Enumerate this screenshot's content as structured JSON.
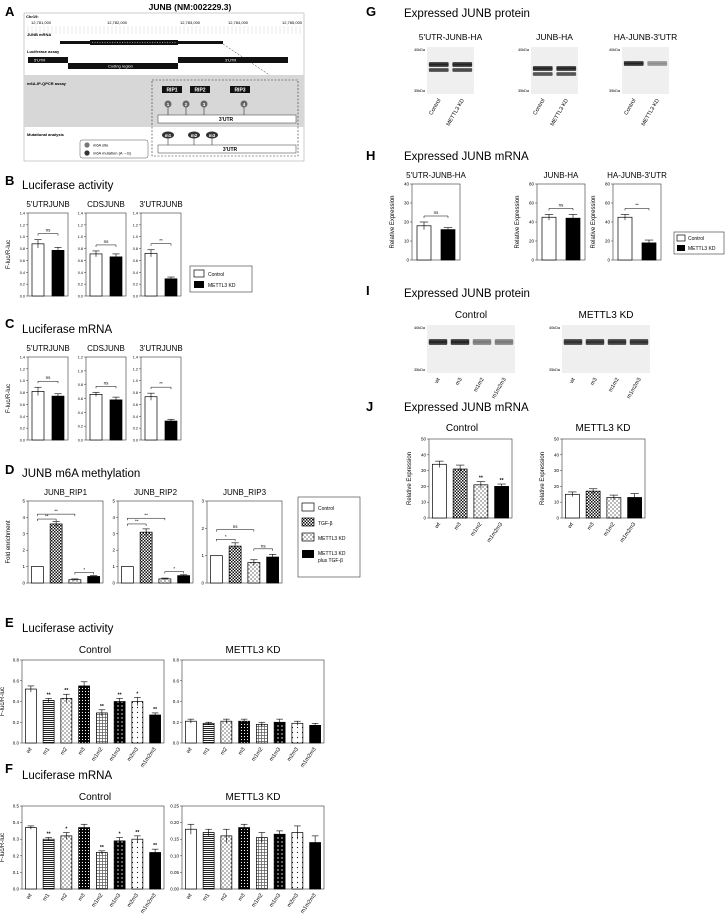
{
  "colors": {
    "bar_fill": "#ffffff",
    "bar_dark": "#000000",
    "gray_panel": "#d7d7d7",
    "blot_bg": "#efefef",
    "band": "#2a2a2a"
  },
  "figure": {
    "A": {
      "letter": "A",
      "title": "JUNB (NM:002229.3)",
      "chr_label": "Chr19:",
      "coords": [
        "12,781,000",
        "12,782,000",
        "12,783,000",
        "12,784,000",
        "12,785,000"
      ],
      "track_mrna": "JUNB mRNA",
      "track_luc": "Luciferase assay",
      "utr5": "5'UTR",
      "coding": "Coding region",
      "utr3": "3'UTR",
      "track_m6a": "m6A-IP-QPCR assay",
      "rips": [
        "RIP1",
        "RIP2",
        "RIP3"
      ],
      "sites": [
        "1",
        "2",
        "3",
        "4"
      ],
      "utr3_box": "3'UTR",
      "track_mut": "Mutational analysis",
      "muts": [
        "m1",
        "m2",
        "m3"
      ],
      "utr3_box2": "3'UTR",
      "legend_site": "m6A site",
      "legend_mut": "m6A mutation (A→G)"
    },
    "B": {
      "letter": "B",
      "title": "Luciferase activity",
      "ylabel": "F-luc/R-luc",
      "panels": [
        {
          "name": "5'UTRJUNB",
          "sig": "ns",
          "values": [
            0.88,
            0.77
          ],
          "errors": [
            0.07,
            0.05
          ],
          "ylim": [
            0,
            1.4
          ],
          "ticks": [
            "0.0",
            "0.2",
            "0.4",
            "0.6",
            "0.8",
            "1.0",
            "1.2",
            "1.4"
          ]
        },
        {
          "name": "CDSJUNB",
          "sig": "ns",
          "values": [
            0.71,
            0.66
          ],
          "errors": [
            0.05,
            0.05
          ],
          "ylim": [
            0,
            1.4
          ],
          "ticks": [
            "0.0",
            "0.2",
            "0.4",
            "0.6",
            "0.8",
            "1.0",
            "1.2",
            "1.4"
          ]
        },
        {
          "name": "3'UTRJUNB",
          "sig": "**",
          "values": [
            0.72,
            0.29
          ],
          "errors": [
            0.06,
            0.03
          ],
          "ylim": [
            0,
            1.4
          ],
          "ticks": [
            "0.0",
            "0.2",
            "0.4",
            "0.6",
            "0.8",
            "1.0",
            "1.2",
            "1.4"
          ]
        }
      ],
      "legend": [
        "Control",
        "METTL3 KD"
      ]
    },
    "C": {
      "letter": "C",
      "title": "Luciferase mRNA",
      "ylabel": "F-luc/R-luc",
      "panels": [
        {
          "name": "5'UTRJUNB",
          "sig": "ns",
          "values": [
            0.82,
            0.74
          ],
          "errors": [
            0.07,
            0.04
          ],
          "ylim": [
            0,
            1.4
          ],
          "ticks": [
            "0.0",
            "0.2",
            "0.4",
            "0.6",
            "0.8",
            "1.0",
            "1.2",
            "1.4"
          ]
        },
        {
          "name": "CDSJUNB",
          "sig": "ns",
          "values": [
            0.66,
            0.58
          ],
          "errors": [
            0.03,
            0.04
          ],
          "ylim": [
            0,
            1.2
          ],
          "ticks": [
            "0.0",
            "0.2",
            "0.4",
            "0.6",
            "0.8",
            "1.0",
            "1.2"
          ]
        },
        {
          "name": "3'UTRJUNB",
          "sig": "**",
          "values": [
            0.73,
            0.32
          ],
          "errors": [
            0.06,
            0.03
          ],
          "ylim": [
            0,
            1.4
          ],
          "ticks": [
            "0.0",
            "0.2",
            "0.4",
            "0.6",
            "0.8",
            "1.0",
            "1.2",
            "1.4"
          ]
        }
      ]
    },
    "D": {
      "letter": "D",
      "title": "JUNB m6A methylation",
      "ylabel": "Fold enrichment",
      "panels": [
        {
          "name": "JUNB_RIP1",
          "values": [
            1.0,
            3.6,
            0.2,
            0.4
          ],
          "errors": [
            0,
            0.15,
            0.05,
            0.05
          ],
          "ylim": [
            0,
            5
          ],
          "ticks": [
            "0",
            "1",
            "2",
            "3",
            "4",
            "5"
          ],
          "sigs": [
            {
              "a": 0,
              "b": 1,
              "label": "**",
              "level": 3.9
            },
            {
              "a": 0,
              "b": 2,
              "label": "**",
              "level": 4.2
            },
            {
              "a": 2,
              "b": 3,
              "label": "*",
              "level": 0.65
            }
          ]
        },
        {
          "name": "JUNB_RIP2",
          "values": [
            1.0,
            3.1,
            0.25,
            0.45
          ],
          "errors": [
            0,
            0.2,
            0.05,
            0.05
          ],
          "ylim": [
            0,
            5
          ],
          "ticks": [
            "0",
            "1",
            "2",
            "3",
            "4",
            "5"
          ],
          "sigs": [
            {
              "a": 0,
              "b": 1,
              "label": "**",
              "level": 3.6
            },
            {
              "a": 0,
              "b": 2,
              "label": "**",
              "level": 3.95
            },
            {
              "a": 2,
              "b": 3,
              "label": "*",
              "level": 0.7
            }
          ]
        },
        {
          "name": "JUNB_RIP3",
          "values": [
            1.0,
            1.35,
            0.75,
            0.95
          ],
          "errors": [
            0,
            0.12,
            0.1,
            0.1
          ],
          "ylim": [
            0,
            3
          ],
          "ticks": [
            "0",
            "1",
            "2",
            "3"
          ],
          "sigs": [
            {
              "a": 0,
              "b": 1,
              "label": "*",
              "level": 1.6
            },
            {
              "a": 0,
              "b": 2,
              "label": "ns",
              "level": 1.95
            },
            {
              "a": 2,
              "b": 3,
              "label": "ns",
              "level": 1.25
            }
          ]
        }
      ],
      "legend": [
        "Control",
        "TGF-β",
        "METTL3 KD",
        "METTL3 KD",
        "plus TGF-β"
      ]
    },
    "E": {
      "letter": "E",
      "title": "Luciferase activity",
      "ylabel": "F-luc/R-luc",
      "categories": [
        "wt",
        "m1",
        "m2",
        "m3",
        "m1m2",
        "m1m3",
        "m2m3",
        "m1m2m3"
      ],
      "control": {
        "name": "Control",
        "values": [
          0.52,
          0.41,
          0.43,
          0.55,
          0.29,
          0.4,
          0.4,
          0.27
        ],
        "errors": [
          0.03,
          0.02,
          0.04,
          0.04,
          0.03,
          0.03,
          0.04,
          0.02
        ],
        "stars": [
          "",
          "**",
          "**",
          "",
          "**",
          "**",
          "*",
          "**"
        ],
        "ylim": [
          0,
          0.8
        ],
        "ticks": [
          "0.0",
          "0.2",
          "0.4",
          "0.6",
          "0.8"
        ]
      },
      "kd": {
        "name": "METTL3 KD",
        "values": [
          0.21,
          0.19,
          0.21,
          0.21,
          0.18,
          0.2,
          0.19,
          0.17
        ],
        "errors": [
          0.02,
          0.01,
          0.02,
          0.02,
          0.02,
          0.03,
          0.02,
          0.02
        ],
        "ylim": [
          0,
          0.8
        ],
        "ticks": [
          "0.0",
          "0.2",
          "0.4",
          "0.6",
          "0.8"
        ]
      }
    },
    "F": {
      "letter": "F",
      "title": "Luciferase mRNA",
      "ylabel": "F-luc/R-luc",
      "categories": [
        "wt",
        "m1",
        "m2",
        "m3",
        "m1m2",
        "m1m3",
        "m2m3",
        "m1m2m3"
      ],
      "control": {
        "name": "Control",
        "values": [
          0.37,
          0.3,
          0.32,
          0.37,
          0.22,
          0.29,
          0.3,
          0.22
        ],
        "errors": [
          0.01,
          0.01,
          0.02,
          0.02,
          0.01,
          0.02,
          0.02,
          0.02
        ],
        "stars": [
          "",
          "**",
          "*",
          "",
          "**",
          "*",
          "**",
          "**"
        ],
        "ylim": [
          0,
          0.5
        ],
        "ticks": [
          "0.0",
          "0.1",
          "0.2",
          "0.3",
          "0.4",
          "0.5"
        ]
      },
      "kd": {
        "name": "METTL3 KD",
        "values": [
          0.18,
          0.17,
          0.16,
          0.185,
          0.155,
          0.165,
          0.17,
          0.14
        ],
        "errors": [
          0.015,
          0.01,
          0.02,
          0.01,
          0.015,
          0.01,
          0.02,
          0.02
        ],
        "ylim": [
          0,
          0.25
        ],
        "ticks": [
          "0.00",
          "0.05",
          "0.10",
          "0.15",
          "0.20",
          "0.25"
        ]
      }
    },
    "G": {
      "letter": "G",
      "title": "Expressed JUNB protein",
      "blots": [
        {
          "name": "5'UTR-JUNB-HA",
          "marks": [
            "40kDa",
            "35kDa"
          ],
          "lanes": [
            "Control",
            "METTL3 KD"
          ]
        },
        {
          "name": "JUNB-HA",
          "marks": [
            "40kDa",
            "35kDa"
          ],
          "lanes": [
            "Control",
            "METTL3 KD"
          ]
        },
        {
          "name": "HA-JUNB-3'UTR",
          "marks": [
            "40kDa",
            "35kDa"
          ],
          "lanes": [
            "Control",
            "METTL3 KD"
          ]
        }
      ]
    },
    "H": {
      "letter": "H",
      "title": "Expressed JUNB mRNA",
      "ylabel": "Relative Expression",
      "panels": [
        {
          "name": "5'UTR-JUNB-HA",
          "sig": "ns",
          "values": [
            18,
            16
          ],
          "errors": [
            2,
            1
          ],
          "ylim": [
            0,
            40
          ],
          "ticks": [
            "0",
            "10",
            "20",
            "30",
            "40"
          ]
        },
        {
          "name": "JUNB-HA",
          "sig": "ns",
          "values": [
            45,
            44
          ],
          "errors": [
            3,
            4
          ],
          "ylim": [
            0,
            80
          ],
          "ticks": [
            "0",
            "20",
            "40",
            "60",
            "80"
          ]
        },
        {
          "name": "HA-JUNB-3'UTR",
          "sig": "**",
          "values": [
            45,
            18
          ],
          "errors": [
            3,
            3
          ],
          "ylim": [
            0,
            80
          ],
          "ticks": [
            "0",
            "20",
            "40",
            "60",
            "80"
          ]
        }
      ],
      "legend": [
        "Control",
        "METTL3 KD"
      ]
    },
    "I": {
      "letter": "I",
      "title": "Expressed JUNB protein",
      "blots": [
        {
          "name": "Control",
          "marks": [
            "40kDa",
            "35kDa"
          ],
          "lanes": [
            "wt",
            "m3",
            "m1m2",
            "m1m2m3"
          ]
        },
        {
          "name": "METTL3 KD",
          "marks": [
            "40kDa",
            "35kDa"
          ],
          "lanes": [
            "wt",
            "m3",
            "m1m2",
            "m1m2m3"
          ]
        }
      ]
    },
    "J": {
      "letter": "J",
      "title": "Expressed JUNB mRNA",
      "ylabel": "Relative Expression",
      "categories": [
        "wt",
        "m3",
        "m1m2",
        "m1m2m3"
      ],
      "control": {
        "name": "Control",
        "values": [
          34,
          31,
          21,
          20
        ],
        "errors": [
          2,
          2.5,
          2,
          1.5
        ],
        "stars": [
          "",
          "",
          "**",
          "**"
        ],
        "ylim": [
          0,
          50
        ],
        "ticks": [
          "0",
          "10",
          "20",
          "30",
          "40",
          "50"
        ]
      },
      "kd": {
        "name": "METTL3 KD",
        "values": [
          15,
          17,
          13,
          13
        ],
        "errors": [
          1.5,
          1.5,
          1.5,
          2.5
        ],
        "ylim": [
          0,
          50
        ],
        "ticks": [
          "0",
          "10",
          "20",
          "30",
          "40",
          "50"
        ]
      }
    }
  },
  "chart_data": [
    {
      "type": "bar",
      "title": "Luciferase activity",
      "ylabel": "F-luc/R-luc",
      "categories": [
        "5'UTRJUNB",
        "CDSJUNB",
        "3'UTRJUNB"
      ],
      "series": [
        {
          "name": "Control",
          "values": [
            0.88,
            0.71,
            0.72
          ]
        },
        {
          "name": "METTL3 KD",
          "values": [
            0.77,
            0.66,
            0.29
          ]
        }
      ],
      "ylim": [
        0,
        1.4
      ]
    },
    {
      "type": "bar",
      "title": "Luciferase mRNA",
      "ylabel": "F-luc/R-luc",
      "categories": [
        "5'UTRJUNB",
        "CDSJUNB",
        "3'UTRJUNB"
      ],
      "series": [
        {
          "name": "Control",
          "values": [
            0.82,
            0.66,
            0.73
          ]
        },
        {
          "name": "METTL3 KD",
          "values": [
            0.74,
            0.58,
            0.32
          ]
        }
      ]
    },
    {
      "type": "bar",
      "title": "JUNB m6A methylation",
      "ylabel": "Fold enrichment",
      "categories": [
        "JUNB_RIP1",
        "JUNB_RIP2",
        "JUNB_RIP3"
      ],
      "series": [
        {
          "name": "Control",
          "values": [
            1.0,
            1.0,
            1.0
          ]
        },
        {
          "name": "TGF-β",
          "values": [
            3.6,
            3.1,
            1.35
          ]
        },
        {
          "name": "METTL3 KD",
          "values": [
            0.2,
            0.25,
            0.75
          ]
        },
        {
          "name": "METTL3 KD plus TGF-β",
          "values": [
            0.4,
            0.45,
            0.95
          ]
        }
      ]
    },
    {
      "type": "bar",
      "title": "Luciferase activity",
      "ylabel": "F-luc/R-luc",
      "categories": [
        "wt",
        "m1",
        "m2",
        "m3",
        "m1m2",
        "m1m3",
        "m2m3",
        "m1m2m3"
      ],
      "series": [
        {
          "name": "Control",
          "values": [
            0.52,
            0.41,
            0.43,
            0.55,
            0.29,
            0.4,
            0.4,
            0.27
          ]
        },
        {
          "name": "METTL3 KD",
          "values": [
            0.21,
            0.19,
            0.21,
            0.21,
            0.18,
            0.2,
            0.19,
            0.17
          ]
        }
      ]
    },
    {
      "type": "bar",
      "title": "Luciferase mRNA",
      "ylabel": "F-luc/R-luc",
      "categories": [
        "wt",
        "m1",
        "m2",
        "m3",
        "m1m2",
        "m1m3",
        "m2m3",
        "m1m2m3"
      ],
      "series": [
        {
          "name": "Control",
          "values": [
            0.37,
            0.3,
            0.32,
            0.37,
            0.22,
            0.29,
            0.3,
            0.22
          ]
        },
        {
          "name": "METTL3 KD",
          "values": [
            0.18,
            0.17,
            0.16,
            0.185,
            0.155,
            0.165,
            0.17,
            0.14
          ]
        }
      ]
    },
    {
      "type": "bar",
      "title": "Expressed JUNB mRNA",
      "ylabel": "Relative Expression",
      "categories": [
        "5'UTR-JUNB-HA",
        "JUNB-HA",
        "HA-JUNB-3'UTR"
      ],
      "series": [
        {
          "name": "Control",
          "values": [
            18,
            45,
            45
          ]
        },
        {
          "name": "METTL3 KD",
          "values": [
            16,
            44,
            18
          ]
        }
      ]
    },
    {
      "type": "bar",
      "title": "Expressed JUNB mRNA",
      "ylabel": "Relative Expression",
      "categories": [
        "wt",
        "m3",
        "m1m2",
        "m1m2m3"
      ],
      "series": [
        {
          "name": "Control",
          "values": [
            34,
            31,
            21,
            20
          ]
        },
        {
          "name": "METTL3 KD",
          "values": [
            15,
            17,
            13,
            13
          ]
        }
      ]
    }
  ]
}
